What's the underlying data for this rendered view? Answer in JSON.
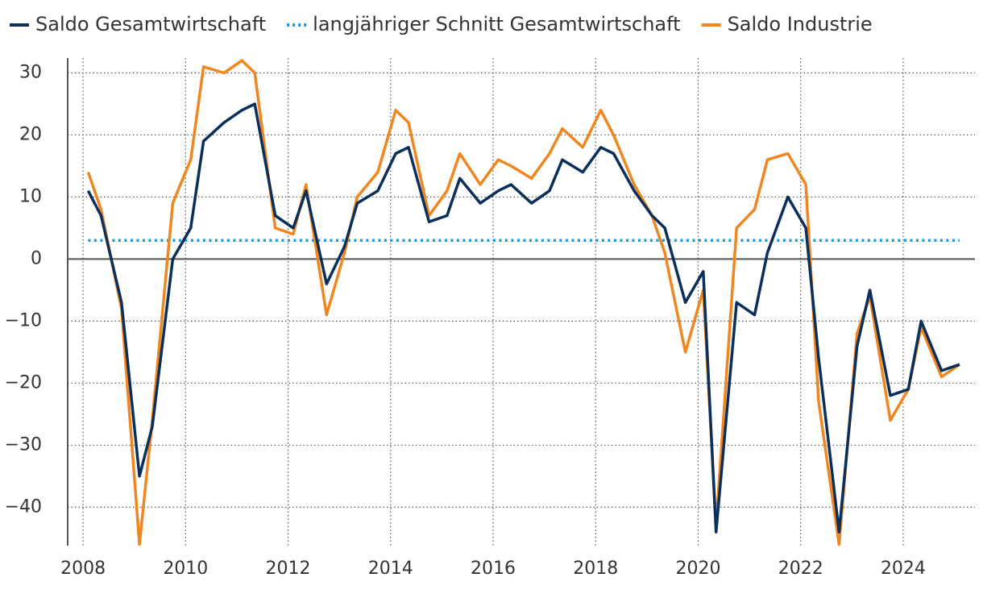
{
  "chart_data": {
    "type": "line",
    "x": [
      2008.1,
      2008.35,
      2008.75,
      2009.1,
      2009.35,
      2009.75,
      2010.1,
      2010.35,
      2010.75,
      2011.1,
      2011.35,
      2011.75,
      2012.1,
      2012.35,
      2012.75,
      2013.1,
      2013.35,
      2013.75,
      2014.1,
      2014.35,
      2014.75,
      2015.1,
      2015.35,
      2015.75,
      2016.1,
      2016.35,
      2016.75,
      2017.1,
      2017.35,
      2017.75,
      2018.1,
      2018.35,
      2018.75,
      2019.1,
      2019.35,
      2019.75,
      2020.1,
      2020.35,
      2020.75,
      2021.1,
      2021.35,
      2021.75,
      2022.1,
      2022.35,
      2022.75,
      2023.1,
      2023.35,
      2023.75,
      2024.1,
      2024.35,
      2024.75,
      2025.1
    ],
    "series": [
      {
        "name": "Saldo Gesamtwirtschaft",
        "color": "#0b2f5b",
        "style": "solid",
        "values": [
          11,
          7,
          -7,
          -35,
          -27,
          0,
          5,
          19,
          22,
          24,
          25,
          7,
          5,
          11,
          -4,
          2,
          9,
          11,
          17,
          18,
          6,
          7,
          13,
          9,
          11,
          12,
          9,
          11,
          16,
          14,
          18,
          17,
          11,
          7,
          5,
          -7,
          -2,
          -44,
          -7,
          -9,
          1,
          10,
          5,
          -16,
          -44,
          -14,
          -5,
          -22,
          -21,
          -10,
          -18,
          -17
        ]
      },
      {
        "name": "langjähriger Schnitt Gesamtwirtschaft",
        "color": "#1a9bd7",
        "style": "dotted",
        "values": [
          3,
          3,
          3,
          3,
          3,
          3,
          3,
          3,
          3,
          3,
          3,
          3,
          3,
          3,
          3,
          3,
          3,
          3,
          3,
          3,
          3,
          3,
          3,
          3,
          3,
          3,
          3,
          3,
          3,
          3,
          3,
          3,
          3,
          3,
          3,
          3,
          3,
          3,
          3,
          3,
          3,
          3,
          3,
          3,
          3,
          3,
          3,
          3,
          3,
          3,
          3,
          3
        ]
      },
      {
        "name": "Saldo Industrie",
        "color": "#f0861f",
        "style": "solid",
        "values": [
          14,
          8,
          -8,
          -46,
          -26,
          9,
          16,
          31,
          30,
          32,
          30,
          5,
          4,
          12,
          -9,
          1,
          10,
          14,
          24,
          22,
          7,
          11,
          17,
          12,
          16,
          15,
          13,
          17,
          21,
          18,
          24,
          20,
          12,
          7,
          1,
          -15,
          -5,
          -43,
          5,
          8,
          16,
          17,
          12,
          -23,
          -46,
          -12,
          -6,
          -26,
          -21,
          -11,
          -19,
          -17
        ]
      }
    ],
    "xlim": [
      2007.7,
      2025.4
    ],
    "xticks": [
      2008,
      2010,
      2012,
      2014,
      2016,
      2018,
      2020,
      2022,
      2024
    ],
    "ylim": [
      -46.2,
      32.4
    ],
    "yticks": [
      {
        "value": -40,
        "label": "−40"
      },
      {
        "value": -30,
        "label": "−30"
      },
      {
        "value": -20,
        "label": "−20"
      },
      {
        "value": -10,
        "label": "−10"
      },
      0,
      10,
      20,
      30
    ],
    "grid": true,
    "legend": "top"
  }
}
